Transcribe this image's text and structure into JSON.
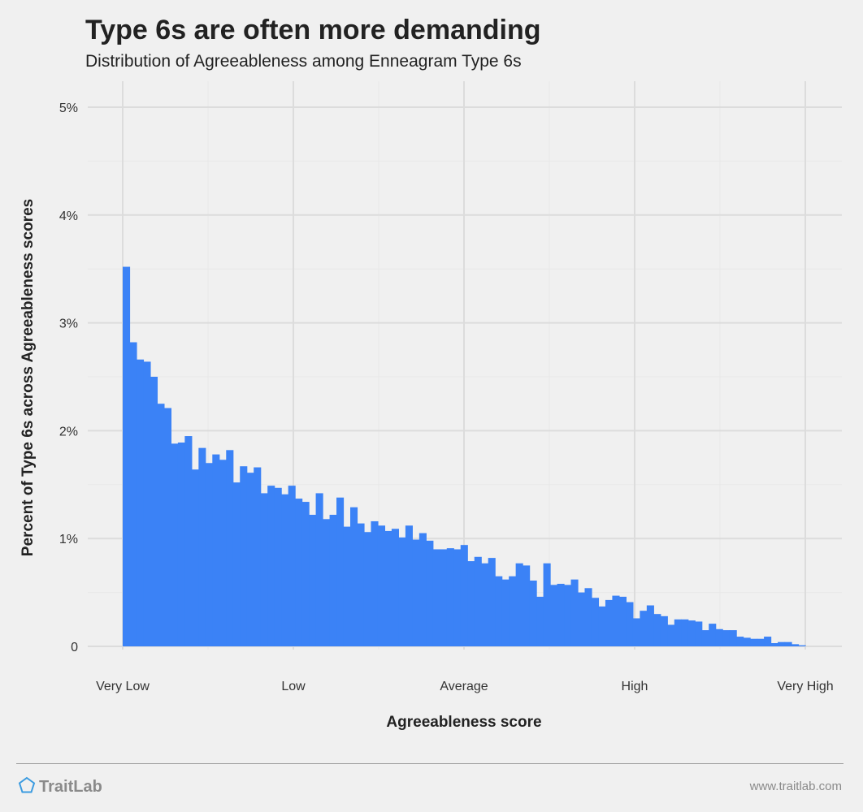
{
  "header": {
    "title": "Type 6s are often more demanding",
    "subtitle": "Distribution of Agreeableness among Enneagram Type 6s"
  },
  "footer": {
    "brand": "TraitLab",
    "url": "www.traitlab.com"
  },
  "colors": {
    "background": "#f0f0f0",
    "bar": "#3b82f6",
    "grid": "#dcdcdc",
    "grid_minor": "#e8e8e8",
    "logo": "#3b9be0"
  },
  "chart_data": {
    "type": "bar",
    "title": "Type 6s are often more demanding",
    "subtitle": "Distribution of Agreeableness among Enneagram Type 6s",
    "xlabel": "Agreeableness score",
    "ylabel": "Percent of Type 6s across Agreeableness scores",
    "xlim": [
      0,
      100
    ],
    "ylim": [
      0,
      5
    ],
    "x_ticks": [
      {
        "value": 0,
        "label": "Very Low"
      },
      {
        "value": 25,
        "label": "Low"
      },
      {
        "value": 50,
        "label": "Average"
      },
      {
        "value": 75,
        "label": "High"
      },
      {
        "value": 100,
        "label": "Very High"
      }
    ],
    "y_ticks": [
      {
        "value": 0,
        "label": "0"
      },
      {
        "value": 1,
        "label": "1%"
      },
      {
        "value": 2,
        "label": "2%"
      },
      {
        "value": 3,
        "label": "3%"
      },
      {
        "value": 4,
        "label": "4%"
      },
      {
        "value": 5,
        "label": "5%"
      }
    ],
    "grid": true,
    "legend": "none",
    "values": [
      3.52,
      2.82,
      2.66,
      2.64,
      2.5,
      2.25,
      2.21,
      1.88,
      1.89,
      1.95,
      1.64,
      1.84,
      1.7,
      1.78,
      1.73,
      1.82,
      1.52,
      1.67,
      1.61,
      1.66,
      1.42,
      1.49,
      1.47,
      1.41,
      1.49,
      1.37,
      1.34,
      1.22,
      1.42,
      1.18,
      1.22,
      1.38,
      1.11,
      1.29,
      1.14,
      1.06,
      1.16,
      1.12,
      1.07,
      1.09,
      1.01,
      1.12,
      0.99,
      1.05,
      0.98,
      0.9,
      0.9,
      0.91,
      0.9,
      0.94,
      0.79,
      0.83,
      0.77,
      0.82,
      0.65,
      0.62,
      0.65,
      0.77,
      0.75,
      0.61,
      0.46,
      0.77,
      0.57,
      0.58,
      0.57,
      0.62,
      0.5,
      0.54,
      0.45,
      0.37,
      0.43,
      0.47,
      0.46,
      0.41,
      0.26,
      0.33,
      0.38,
      0.3,
      0.28,
      0.2,
      0.25,
      0.25,
      0.24,
      0.23,
      0.15,
      0.21,
      0.16,
      0.15,
      0.15,
      0.09,
      0.08,
      0.07,
      0.07,
      0.09,
      0.03,
      0.04,
      0.04,
      0.02,
      0.01
    ]
  }
}
